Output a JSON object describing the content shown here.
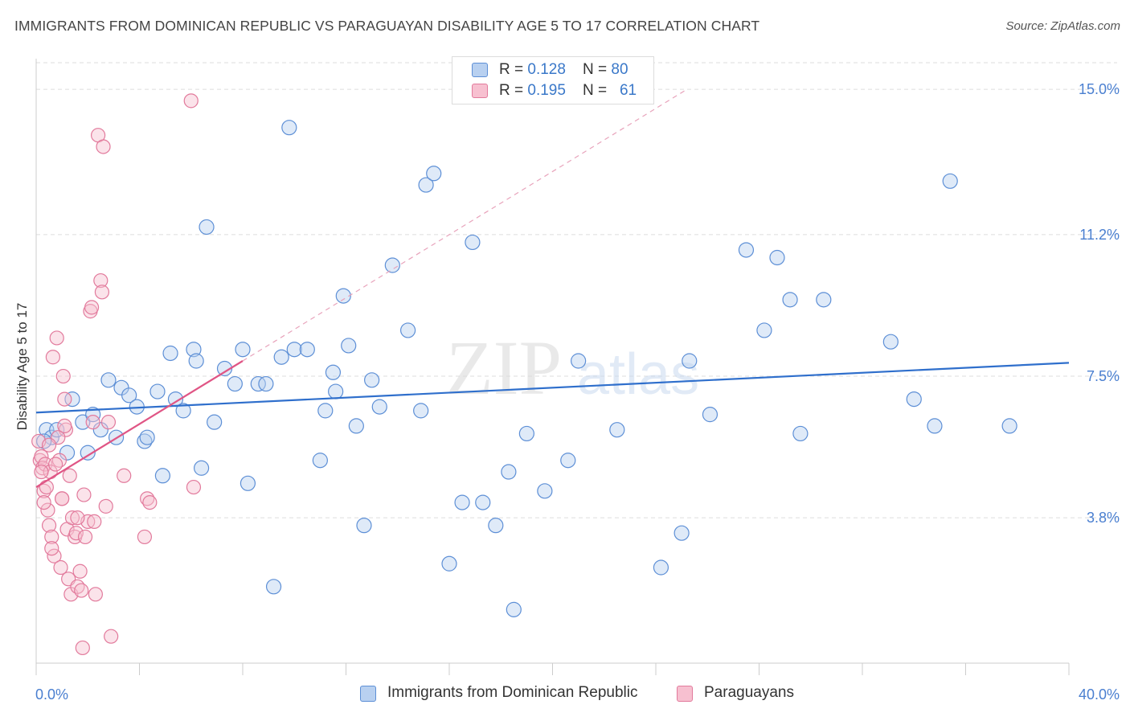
{
  "title": "IMMIGRANTS FROM DOMINICAN REPUBLIC VS PARAGUAYAN DISABILITY AGE 5 TO 17 CORRELATION CHART",
  "source": "Source: ZipAtlas.com",
  "watermark": {
    "zip": "ZIP",
    "atlas": "atlas"
  },
  "legend": [
    {
      "r_label": "R = ",
      "r_value": "0.128",
      "n_label": "N = ",
      "n_value": "80"
    },
    {
      "r_label": "R = ",
      "r_value": "0.195",
      "n_label": "N = ",
      "n_value": "61"
    }
  ],
  "colors": {
    "blue_fill": "#b8d0f0",
    "blue_stroke": "#5d8fd6",
    "blue_line": "#2f6fcc",
    "pink_fill": "#f7c0d0",
    "pink_stroke": "#e27a9c",
    "pink_line": "#e05585",
    "tick_label": "#4a7fd0",
    "grid": "#dddddd"
  },
  "chart_data": {
    "type": "scatter",
    "title": "IMMIGRANTS FROM DOMINICAN REPUBLIC VS PARAGUAYAN DISABILITY AGE 5 TO 17 CORRELATION CHART",
    "xlabel": "",
    "ylabel": "Disability Age 5 to 17",
    "xlim": [
      0,
      40
    ],
    "ylim": [
      0,
      15.8
    ],
    "x_tick_labels": [
      "0.0%",
      "40.0%"
    ],
    "y_ticks": [
      3.8,
      7.5,
      11.2,
      15.0
    ],
    "y_tick_labels": [
      "3.8%",
      "7.5%",
      "11.2%",
      "15.0%"
    ],
    "grid": "horizontal dashed",
    "series": [
      {
        "name": "Immigrants from Dominican Republic",
        "color": "#5d8fd6",
        "trend": {
          "x": [
            0,
            40
          ],
          "y": [
            6.55,
            7.85
          ]
        },
        "points": [
          [
            0.4,
            6.1
          ],
          [
            0.6,
            5.9
          ],
          [
            0.8,
            6.1
          ],
          [
            1.2,
            5.5
          ],
          [
            1.4,
            6.9
          ],
          [
            1.8,
            6.3
          ],
          [
            2.0,
            5.5
          ],
          [
            2.2,
            6.5
          ],
          [
            2.5,
            6.1
          ],
          [
            2.8,
            7.4
          ],
          [
            3.1,
            5.9
          ],
          [
            3.3,
            7.2
          ],
          [
            3.6,
            7.0
          ],
          [
            3.9,
            6.7
          ],
          [
            4.2,
            5.8
          ],
          [
            4.3,
            5.9
          ],
          [
            4.7,
            7.1
          ],
          [
            4.9,
            4.9
          ],
          [
            5.2,
            8.1
          ],
          [
            5.4,
            6.9
          ],
          [
            5.7,
            6.6
          ],
          [
            6.1,
            8.2
          ],
          [
            6.2,
            7.9
          ],
          [
            6.4,
            5.1
          ],
          [
            6.6,
            11.4
          ],
          [
            6.9,
            6.3
          ],
          [
            7.3,
            7.7
          ],
          [
            7.7,
            7.3
          ],
          [
            8.0,
            8.2
          ],
          [
            8.2,
            4.7
          ],
          [
            8.6,
            7.3
          ],
          [
            8.9,
            7.3
          ],
          [
            9.2,
            2.0
          ],
          [
            9.5,
            8.0
          ],
          [
            9.8,
            14.0
          ],
          [
            10.0,
            8.2
          ],
          [
            10.5,
            8.2
          ],
          [
            11.0,
            5.3
          ],
          [
            11.2,
            6.6
          ],
          [
            11.5,
            7.6
          ],
          [
            11.6,
            7.1
          ],
          [
            11.9,
            9.6
          ],
          [
            12.1,
            8.3
          ],
          [
            12.4,
            6.2
          ],
          [
            12.7,
            3.6
          ],
          [
            13.0,
            7.4
          ],
          [
            13.3,
            6.7
          ],
          [
            13.8,
            10.4
          ],
          [
            14.4,
            8.7
          ],
          [
            14.9,
            6.6
          ],
          [
            15.1,
            12.5
          ],
          [
            15.4,
            12.8
          ],
          [
            16.0,
            2.6
          ],
          [
            16.5,
            4.2
          ],
          [
            16.9,
            11.0
          ],
          [
            17.3,
            4.2
          ],
          [
            17.8,
            3.6
          ],
          [
            18.3,
            5.0
          ],
          [
            18.5,
            1.4
          ],
          [
            19.0,
            6.0
          ],
          [
            19.7,
            4.5
          ],
          [
            20.6,
            5.3
          ],
          [
            21.0,
            7.9
          ],
          [
            22.5,
            6.1
          ],
          [
            24.2,
            2.5
          ],
          [
            25.0,
            3.4
          ],
          [
            25.3,
            7.9
          ],
          [
            26.1,
            6.5
          ],
          [
            27.5,
            10.8
          ],
          [
            28.2,
            8.7
          ],
          [
            28.7,
            10.6
          ],
          [
            29.2,
            9.5
          ],
          [
            29.6,
            6.0
          ],
          [
            30.5,
            9.5
          ],
          [
            33.1,
            8.4
          ],
          [
            34.0,
            6.9
          ],
          [
            34.8,
            6.2
          ],
          [
            35.4,
            12.6
          ],
          [
            37.7,
            6.2
          ],
          [
            0.3,
            5.8
          ]
        ]
      },
      {
        "name": "Paraguayans",
        "color": "#e27a9c",
        "trend": {
          "x": [
            0,
            8
          ],
          "y": [
            4.6,
            7.9
          ]
        },
        "points": [
          [
            0.1,
            5.8
          ],
          [
            0.15,
            5.3
          ],
          [
            0.2,
            5.4
          ],
          [
            0.25,
            5.1
          ],
          [
            0.3,
            4.5
          ],
          [
            0.35,
            5.2
          ],
          [
            0.4,
            4.6
          ],
          [
            0.45,
            4.0
          ],
          [
            0.5,
            3.6
          ],
          [
            0.55,
            5.0
          ],
          [
            0.6,
            3.3
          ],
          [
            0.65,
            8.0
          ],
          [
            0.7,
            2.8
          ],
          [
            0.8,
            8.5
          ],
          [
            0.9,
            5.3
          ],
          [
            0.95,
            2.5
          ],
          [
            1.0,
            4.3
          ],
          [
            1.05,
            7.5
          ],
          [
            1.1,
            6.9
          ],
          [
            1.15,
            6.1
          ],
          [
            1.2,
            3.5
          ],
          [
            1.25,
            2.2
          ],
          [
            1.3,
            4.9
          ],
          [
            1.35,
            1.8
          ],
          [
            1.4,
            3.8
          ],
          [
            1.5,
            3.3
          ],
          [
            1.55,
            3.4
          ],
          [
            1.6,
            2.0
          ],
          [
            1.7,
            2.4
          ],
          [
            1.75,
            1.9
          ],
          [
            1.8,
            0.4
          ],
          [
            1.85,
            4.4
          ],
          [
            1.9,
            3.3
          ],
          [
            2.0,
            3.7
          ],
          [
            2.1,
            9.2
          ],
          [
            2.15,
            9.3
          ],
          [
            2.2,
            6.3
          ],
          [
            2.25,
            3.7
          ],
          [
            2.3,
            1.8
          ],
          [
            2.4,
            13.8
          ],
          [
            2.5,
            10.0
          ],
          [
            2.55,
            9.7
          ],
          [
            2.6,
            13.5
          ],
          [
            2.7,
            4.1
          ],
          [
            2.8,
            6.3
          ],
          [
            2.9,
            0.7
          ],
          [
            3.4,
            4.9
          ],
          [
            4.2,
            3.3
          ],
          [
            4.3,
            4.3
          ],
          [
            4.4,
            4.2
          ],
          [
            6.0,
            14.7
          ],
          [
            6.1,
            4.6
          ],
          [
            1.0,
            4.3
          ],
          [
            0.75,
            5.2
          ],
          [
            0.85,
            5.9
          ],
          [
            1.1,
            6.2
          ],
          [
            0.5,
            5.7
          ],
          [
            0.2,
            5.0
          ],
          [
            0.3,
            4.2
          ],
          [
            0.6,
            3.0
          ],
          [
            1.6,
            3.8
          ]
        ]
      }
    ]
  },
  "bottom_legend": [
    "Immigrants from Dominican Republic",
    "Paraguayans"
  ]
}
